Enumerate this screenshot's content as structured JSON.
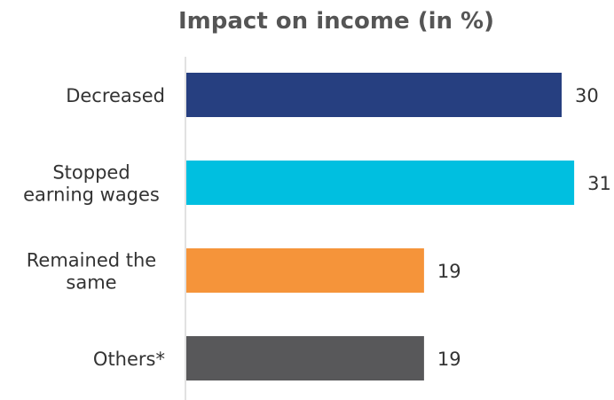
{
  "chart_data": {
    "type": "bar",
    "orientation": "horizontal",
    "title": "Impact on income (in %)",
    "xlabel": "",
    "ylabel": "",
    "categories": [
      [
        "Decreased"
      ],
      [
        "Stopped",
        "earning wages"
      ],
      [
        "Remained the",
        "same"
      ],
      [
        "Others*"
      ]
    ],
    "values": [
      30,
      31,
      19,
      19
    ],
    "colors": [
      "#263f80",
      "#00bfe0",
      "#f5943a",
      "#58585a"
    ],
    "xlim": [
      0,
      32
    ],
    "grid": false,
    "legend": "none",
    "data_labels": true
  }
}
